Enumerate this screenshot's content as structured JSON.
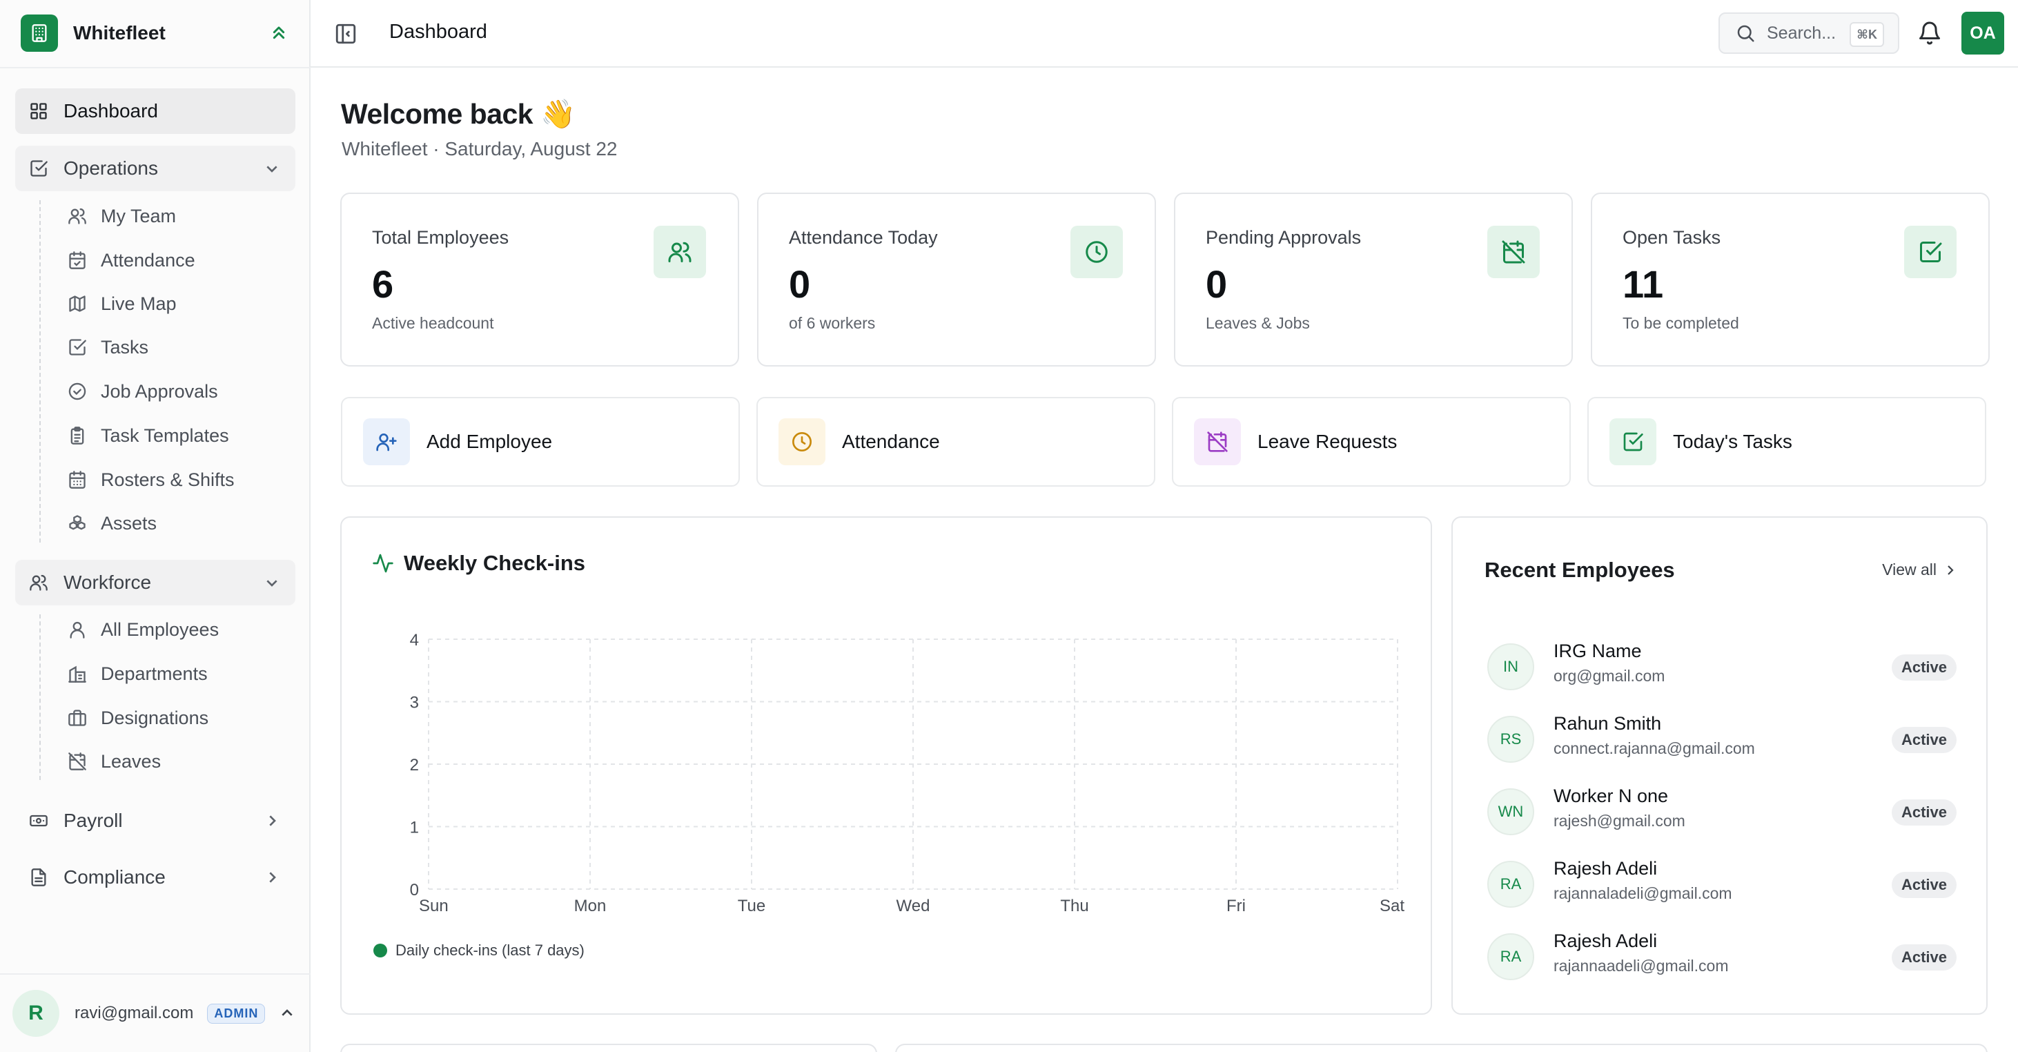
{
  "app": {
    "name": "Whitefleet"
  },
  "topbar": {
    "title": "Dashboard",
    "search_placeholder": "Search...",
    "search_shortcut": "⌘K",
    "user_initials": "OA"
  },
  "sidebar": {
    "dashboard": "Dashboard",
    "operations": {
      "label": "Operations",
      "items": [
        "My Team",
        "Attendance",
        "Live Map",
        "Tasks",
        "Job Approvals",
        "Task Templates",
        "Rosters & Shifts",
        "Assets"
      ]
    },
    "workforce": {
      "label": "Workforce",
      "items": [
        "All Employees",
        "Departments",
        "Designations",
        "Leaves"
      ]
    },
    "payroll": "Payroll",
    "compliance": "Compliance",
    "user": {
      "initial": "R",
      "email": "ravi@gmail.com",
      "role": "ADMIN"
    }
  },
  "welcome": {
    "title": "Welcome back 👋",
    "subtitle": "Whitefleet · Saturday, August 22"
  },
  "stats": [
    {
      "label": "Total Employees",
      "value": "6",
      "sub": "Active headcount",
      "icon": "users-icon"
    },
    {
      "label": "Attendance Today",
      "value": "0",
      "sub": "of 6 workers",
      "icon": "clock-icon"
    },
    {
      "label": "Pending Approvals",
      "value": "0",
      "sub": "Leaves & Jobs",
      "icon": "calendar-off-icon"
    },
    {
      "label": "Open Tasks",
      "value": "11",
      "sub": "To be completed",
      "icon": "check-square-icon"
    }
  ],
  "actions": [
    {
      "label": "Add Employee",
      "icon": "user-plus-icon",
      "color": "#2563b8",
      "bg": "#eaf1fb"
    },
    {
      "label": "Attendance",
      "icon": "clock-icon",
      "color": "#c98a0c",
      "bg": "#fdf5e3"
    },
    {
      "label": "Leave Requests",
      "icon": "calendar-off-icon",
      "color": "#9b3cc4",
      "bg": "#f6ebfb"
    },
    {
      "label": "Today's Tasks",
      "icon": "check-square-icon",
      "color": "#16894a",
      "bg": "#e6f5ec"
    }
  ],
  "chart": {
    "title": "Weekly Check-ins",
    "legend": "Daily check-ins (last 7 days)"
  },
  "chart_data": {
    "type": "line",
    "title": "Weekly Check-ins",
    "categories": [
      "Sun",
      "Mon",
      "Tue",
      "Wed",
      "Thu",
      "Fri",
      "Sat"
    ],
    "series": [
      {
        "name": "Daily check-ins (last 7 days)",
        "values": [
          0,
          0,
          0,
          0,
          0,
          0,
          0
        ]
      }
    ],
    "yticks": [
      0,
      1,
      2,
      3,
      4
    ],
    "ylim": [
      0,
      4
    ],
    "grid": true,
    "legend_position": "bottom-left",
    "color": "#16894a"
  },
  "recent_employees": {
    "title": "Recent Employees",
    "view_all": "View all",
    "items": [
      {
        "initials": "IN",
        "name": "IRG Name",
        "email": "org@gmail.com",
        "status": "Active"
      },
      {
        "initials": "RS",
        "name": "Rahun Smith",
        "email": "connect.rajanna@gmail.com",
        "status": "Active"
      },
      {
        "initials": "WN",
        "name": "Worker N one",
        "email": "rajesh@gmail.com",
        "status": "Active"
      },
      {
        "initials": "RA",
        "name": "Rajesh Adeli",
        "email": "rajannaladeli@gmail.com",
        "status": "Active"
      },
      {
        "initials": "RA",
        "name": "Rajesh Adeli",
        "email": "rajannaadeli@gmail.com",
        "status": "Active"
      }
    ]
  },
  "colors": {
    "brand": "#16894a",
    "admin_badge": "#2563b8"
  }
}
